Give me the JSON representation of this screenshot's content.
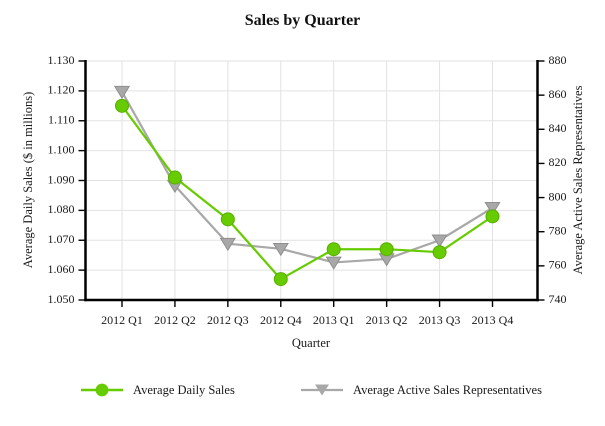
{
  "title": "Sales by Quarter",
  "chart_data": {
    "type": "line",
    "title": "Sales by Quarter",
    "categories": [
      "2012 Q1",
      "2012 Q2",
      "2012 Q3",
      "2012 Q4",
      "2013 Q1",
      "2013 Q2",
      "2013 Q3",
      "2013 Q4"
    ],
    "xlabel": "Quarter",
    "grid": true,
    "legend_position": "bottom",
    "left_axis": {
      "label": "Average Daily Sales ($ in millions)",
      "min": 1.05,
      "max": 1.13,
      "tick_step": 0.01,
      "tick_labels": [
        "1.050",
        "1.060",
        "1.070",
        "1.080",
        "1.090",
        "1.100",
        "1.110",
        "1.120",
        "1.130"
      ]
    },
    "right_axis": {
      "label": "Average Active Sales Representatives",
      "min": 740,
      "max": 880,
      "tick_step": 20,
      "tick_labels": [
        "740",
        "760",
        "780",
        "800",
        "820",
        "840",
        "860",
        "880"
      ]
    },
    "series": [
      {
        "name": "Average Daily Sales",
        "axis": "left",
        "marker": "circle",
        "color": "#66cc00",
        "marker_edge": "#58ad00",
        "values": [
          1.115,
          1.091,
          1.077,
          1.057,
          1.067,
          1.067,
          1.066,
          1.078
        ]
      },
      {
        "name": "Average Active Sales Representatives",
        "axis": "right",
        "marker": "triangle-down",
        "color": "#a8a8a8",
        "marker_edge": "#8f8f8f",
        "values": [
          862,
          807,
          773,
          770,
          762,
          764,
          775,
          794
        ]
      }
    ]
  },
  "colors": {
    "grid": "#e2e2e2",
    "axis": "#000000",
    "text": "#1a1a1a",
    "background": "#ffffff"
  }
}
